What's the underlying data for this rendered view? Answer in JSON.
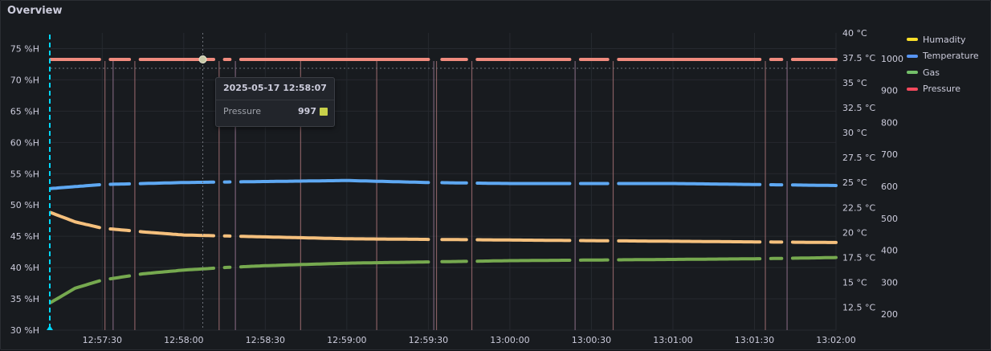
{
  "panel": {
    "title": "Overview"
  },
  "tooltip": {
    "time": "2025-05-17 12:58:07",
    "series": "Pressure",
    "value": "997",
    "swatch_color": "#c8d04a"
  },
  "colors": {
    "humidity": "#fade2a",
    "temperature": "#5794f2",
    "gas": "#73bf69",
    "pressure": "#f2495c",
    "pressure_line": "#f08b7e",
    "temp_line": "#5ea8f2",
    "humidity_line": "#f5c07d",
    "gas_line": "#76a94f",
    "cursor": "#00d8ff"
  },
  "chart_data": {
    "type": "line",
    "x_ticks": [
      "12:57:30",
      "12:58:00",
      "12:58:30",
      "12:59:00",
      "12:59:30",
      "13:00:00",
      "13:00:30",
      "13:01:00",
      "13:01:30",
      "13:02:00"
    ],
    "x_range": [
      "12:57:11",
      "13:02:00"
    ],
    "y_left": {
      "ticks": [
        "30 %H",
        "35 %H",
        "40 %H",
        "45 %H",
        "50 %H",
        "55 %H",
        "60 %H",
        "65 %H",
        "70 %H",
        "75 %H"
      ],
      "range": [
        30,
        77.5
      ]
    },
    "y_right_temp": {
      "ticks": [
        "12.5 °C",
        "15 °C",
        "17.5 °C",
        "20 °C",
        "22.5 °C",
        "25 °C",
        "27.5 °C",
        "30 °C",
        "32.5 °C",
        "35 °C",
        "37.5 °C",
        "40 °C"
      ],
      "range": [
        10.2,
        40
      ]
    },
    "y_right_pressure": {
      "ticks": [
        "200",
        "300",
        "400",
        "500",
        "600",
        "700",
        "800",
        "900",
        "1000"
      ],
      "range": [
        150,
        1080
      ]
    },
    "legend": [
      "Humadity",
      "Temperature",
      "Gas",
      "Pressure"
    ],
    "series": [
      {
        "name": "Pressure",
        "axis": "pressure",
        "points": [
          [
            "12:57:11",
            997
          ],
          [
            "13:02:00",
            997
          ]
        ]
      },
      {
        "name": "Temperature",
        "axis": "temp",
        "points": [
          [
            "12:57:11",
            24.4
          ],
          [
            "12:57:30",
            24.8
          ],
          [
            "12:58:00",
            25.0
          ],
          [
            "12:58:30",
            25.1
          ],
          [
            "12:59:00",
            25.2
          ],
          [
            "12:59:30",
            25.0
          ],
          [
            "13:00:00",
            24.9
          ],
          [
            "13:00:30",
            24.9
          ],
          [
            "13:01:00",
            24.9
          ],
          [
            "13:01:30",
            24.8
          ],
          [
            "13:02:00",
            24.7
          ]
        ]
      },
      {
        "name": "Humadity",
        "axis": "humidity",
        "points": [
          [
            "12:57:11",
            48.8
          ],
          [
            "12:57:20",
            47.3
          ],
          [
            "12:57:30",
            46.3
          ],
          [
            "12:57:45",
            45.7
          ],
          [
            "12:58:00",
            45.2
          ],
          [
            "12:58:30",
            44.9
          ],
          [
            "12:59:00",
            44.6
          ],
          [
            "12:59:30",
            44.5
          ],
          [
            "13:00:00",
            44.4
          ],
          [
            "13:00:30",
            44.3
          ],
          [
            "13:01:00",
            44.2
          ],
          [
            "13:01:30",
            44.1
          ],
          [
            "13:02:00",
            44.0
          ]
        ]
      },
      {
        "name": "Gas",
        "axis": "humidity",
        "points": [
          [
            "12:57:11",
            34.4
          ],
          [
            "12:57:20",
            36.7
          ],
          [
            "12:57:30",
            38.0
          ],
          [
            "12:57:45",
            39.0
          ],
          [
            "12:58:00",
            39.6
          ],
          [
            "12:58:15",
            40.0
          ],
          [
            "12:58:30",
            40.3
          ],
          [
            "12:59:00",
            40.7
          ],
          [
            "12:59:30",
            40.9
          ],
          [
            "13:00:00",
            41.1
          ],
          [
            "13:00:30",
            41.2
          ],
          [
            "13:01:00",
            41.3
          ],
          [
            "13:01:30",
            41.4
          ],
          [
            "13:02:00",
            41.6
          ]
        ]
      }
    ],
    "cursor_time": "12:58:07",
    "cursor_value": 997,
    "event_times": [
      "12:57:31",
      "12:57:34",
      "12:57:42",
      "12:58:13",
      "12:58:19",
      "12:58:43",
      "12:59:11",
      "12:59:32",
      "12:59:33",
      "12:59:46",
      "13:00:24",
      "13:00:38",
      "13:01:34",
      "13:01:42",
      "12:57:10"
    ],
    "gaps": [
      "12:57:31",
      "12:57:42",
      "12:58:13",
      "12:58:19",
      "12:59:32",
      "12:59:33",
      "12:59:46",
      "13:00:24",
      "13:00:38",
      "13:01:34",
      "13:01:42"
    ]
  }
}
